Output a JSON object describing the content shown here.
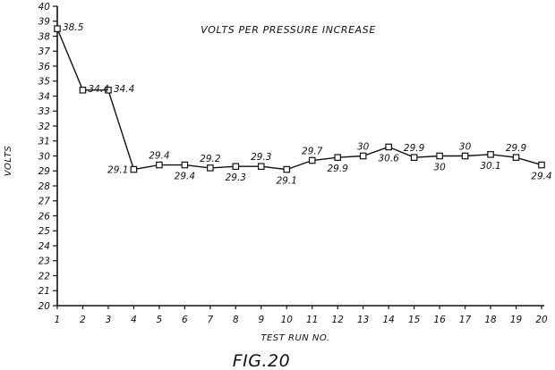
{
  "chart_data": {
    "type": "line",
    "title": "VOLTS PER PRESSURE INCREASE",
    "xlabel": "TEST RUN NO.",
    "ylabel": "VOLTS",
    "caption": "FIG.20",
    "x": [
      1,
      2,
      3,
      4,
      5,
      6,
      7,
      8,
      9,
      10,
      11,
      12,
      13,
      14,
      15,
      16,
      17,
      18,
      19,
      20
    ],
    "x_tick_labels": [
      "1",
      "2",
      "3",
      "4",
      "5",
      "6",
      "7",
      "8",
      "9",
      "10",
      "11",
      "12",
      "13",
      "14",
      "15",
      "16",
      "17",
      "18",
      "19",
      "20"
    ],
    "xlim": [
      1,
      20
    ],
    "ylim": [
      20,
      40
    ],
    "y_tick_labels": [
      "20",
      "21",
      "22",
      "23",
      "24",
      "25",
      "26",
      "27",
      "28",
      "29",
      "30",
      "31",
      "32",
      "33",
      "34",
      "35",
      "36",
      "37",
      "38",
      "39",
      "40"
    ],
    "grid": false,
    "marker": "square",
    "line_color": "#111111",
    "series": [
      {
        "values": [
          38.5,
          34.4,
          34.4,
          29.1,
          29.4,
          29.4,
          29.2,
          29.3,
          29.3,
          29.1,
          29.7,
          29.9,
          30,
          30.6,
          29.9,
          30,
          30,
          30.1,
          29.9,
          29.4
        ],
        "labels": [
          "38.5",
          "34.4",
          "34.4",
          "29.1",
          "29.4",
          "29.4",
          "29.2",
          "29.3",
          "29.3",
          "29.1",
          "29.7",
          "29.9",
          "30",
          "30.6",
          "29.9",
          "30",
          "30",
          "30.1",
          "29.9",
          "29.4"
        ]
      }
    ]
  }
}
